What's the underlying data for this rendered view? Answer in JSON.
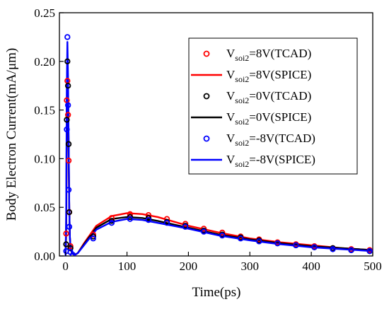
{
  "chart_data": {
    "type": "line",
    "xlabel": "Time(ps)",
    "ylabel": "Body Electron Current(mA/μm)",
    "xlim": [
      -10,
      500
    ],
    "ylim": [
      0,
      0.25
    ],
    "xticks": [
      0,
      100,
      200,
      300,
      400,
      500
    ],
    "xtick_labels": [
      "0",
      "100",
      "200",
      "300",
      "400",
      "500"
    ],
    "yticks": [
      0,
      0.05,
      0.1,
      0.15,
      0.2,
      0.25
    ],
    "ytick_labels": [
      "0.00",
      "0.05",
      "0.10",
      "0.15",
      "0.20",
      "0.25"
    ],
    "grid": false,
    "legend_position": "top-right",
    "legend": [
      {
        "prefix": "V",
        "sub": "soi2",
        "suffix": "=8V(TCAD)",
        "style": "marker",
        "color": "#ff0000"
      },
      {
        "prefix": "V",
        "sub": "soi2",
        "suffix": "=8V(SPICE)",
        "style": "line",
        "color": "#ff0000"
      },
      {
        "prefix": "V",
        "sub": "soi2",
        "suffix": "=0V(TCAD)",
        "style": "marker",
        "color": "#000000"
      },
      {
        "prefix": "V",
        "sub": "soi2",
        "suffix": "=0V(SPICE)",
        "style": "line",
        "color": "#000000"
      },
      {
        "prefix": "V",
        "sub": "soi2",
        "suffix": "=-8V(TCAD)",
        "style": "marker",
        "color": "#0000ff"
      },
      {
        "prefix": "V",
        "sub": "soi2",
        "suffix": "=-8V(SPICE)",
        "style": "line",
        "color": "#0000ff"
      }
    ],
    "series": [
      {
        "style": "line",
        "color": "#ff0000",
        "x": [
          0,
          1,
          2,
          3,
          4,
          5,
          6,
          7,
          8,
          10,
          12,
          15,
          20,
          30,
          50,
          75,
          100,
          125,
          150,
          200,
          250,
          300,
          350,
          400,
          450,
          500
        ],
        "y": [
          0.0,
          0.02,
          0.12,
          0.19,
          0.165,
          0.11,
          0.05,
          0.02,
          0.008,
          0.004,
          0.002,
          0.001,
          0.003,
          0.013,
          0.031,
          0.041,
          0.044,
          0.043,
          0.04,
          0.031,
          0.024,
          0.018,
          0.014,
          0.011,
          0.008,
          0.006
        ]
      },
      {
        "style": "line",
        "color": "#000000",
        "x": [
          0,
          1,
          2,
          3,
          4,
          5,
          6,
          7,
          8,
          10,
          12,
          15,
          20,
          30,
          50,
          75,
          100,
          125,
          150,
          200,
          250,
          300,
          350,
          400,
          450,
          500
        ],
        "y": [
          0.0,
          0.03,
          0.15,
          0.205,
          0.175,
          0.115,
          0.05,
          0.02,
          0.008,
          0.004,
          0.002,
          0.001,
          0.003,
          0.012,
          0.029,
          0.038,
          0.04,
          0.039,
          0.036,
          0.029,
          0.022,
          0.017,
          0.013,
          0.01,
          0.008,
          0.006
        ]
      },
      {
        "style": "line",
        "color": "#0000ff",
        "x": [
          0,
          1,
          2,
          3,
          4,
          5,
          6,
          7,
          8,
          10,
          12,
          15,
          20,
          30,
          50,
          75,
          100,
          125,
          150,
          200,
          250,
          300,
          350,
          400,
          450,
          500
        ],
        "y": [
          0.0,
          0.04,
          0.17,
          0.22,
          0.185,
          0.12,
          0.05,
          0.02,
          0.008,
          0.004,
          0.002,
          0.001,
          0.003,
          0.011,
          0.027,
          0.035,
          0.038,
          0.037,
          0.034,
          0.028,
          0.021,
          0.016,
          0.012,
          0.009,
          0.007,
          0.005
        ]
      },
      {
        "style": "marker",
        "color": "#ff0000",
        "x": [
          1,
          2,
          3,
          4,
          5,
          6,
          8,
          12,
          45,
          75,
          105,
          135,
          165,
          195,
          225,
          255,
          285,
          315,
          345,
          375,
          405,
          435,
          465,
          495
        ],
        "y": [
          0.023,
          0.16,
          0.18,
          0.145,
          0.098,
          0.045,
          0.01,
          0.001,
          0.022,
          0.039,
          0.043,
          0.042,
          0.038,
          0.033,
          0.028,
          0.024,
          0.02,
          0.017,
          0.014,
          0.012,
          0.01,
          0.008,
          0.007,
          0.006
        ]
      },
      {
        "style": "marker",
        "color": "#000000",
        "x": [
          1,
          2,
          3,
          4,
          5,
          6,
          8,
          12,
          45,
          75,
          105,
          135,
          165,
          195,
          225,
          255,
          285,
          315,
          345,
          375,
          405,
          435,
          465,
          495
        ],
        "y": [
          0.012,
          0.14,
          0.2,
          0.175,
          0.115,
          0.045,
          0.008,
          0.001,
          0.02,
          0.036,
          0.04,
          0.039,
          0.035,
          0.031,
          0.026,
          0.022,
          0.019,
          0.016,
          0.013,
          0.011,
          0.009,
          0.008,
          0.006,
          0.005
        ]
      },
      {
        "style": "marker",
        "color": "#0000ff",
        "x": [
          1,
          2,
          3,
          4,
          5,
          6,
          8,
          12,
          45,
          75,
          105,
          135,
          165,
          195,
          225,
          255,
          285,
          315,
          345,
          375,
          405,
          435,
          465,
          495
        ],
        "y": [
          0.005,
          0.13,
          0.225,
          0.155,
          0.068,
          0.03,
          0.004,
          0.001,
          0.018,
          0.034,
          0.038,
          0.037,
          0.034,
          0.03,
          0.025,
          0.021,
          0.018,
          0.015,
          0.013,
          0.011,
          0.009,
          0.007,
          0.006,
          0.005
        ]
      }
    ]
  }
}
